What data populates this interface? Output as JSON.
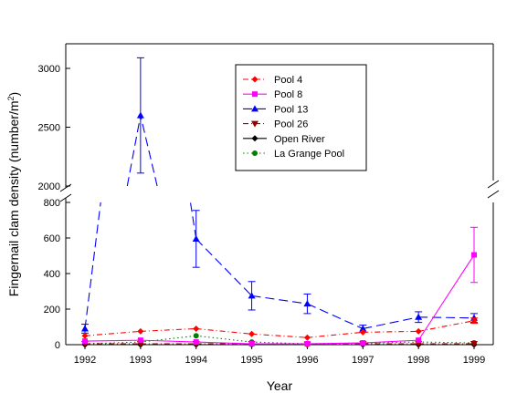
{
  "chart_data": {
    "type": "line",
    "xlabel": "Year",
    "ylabel_prefix": "Fingernail clam density (number/m",
    "ylabel_sup": "2",
    "ylabel_suffix": ")",
    "x": [
      1992,
      1993,
      1994,
      1995,
      1996,
      1997,
      1998,
      1999
    ],
    "x_tick_labels": [
      "1992",
      "1993",
      "1994",
      "1995",
      "1996",
      "1997",
      "1998",
      "1999"
    ],
    "xlim": [
      1992,
      1999
    ],
    "y_axis_break": true,
    "ylim_lower": [
      0,
      800
    ],
    "ylim_upper": [
      2000,
      3200
    ],
    "y_ticks_lower": [
      0,
      200,
      400,
      600,
      800
    ],
    "y_tick_labels_lower": [
      "0",
      "200",
      "400",
      "600",
      "800"
    ],
    "y_ticks_upper": [
      2000,
      2500,
      3000
    ],
    "y_tick_labels_upper": [
      "2000",
      "2500",
      "3000"
    ],
    "grid": false,
    "legend_position": "top-center",
    "series": [
      {
        "name": "Pool 4",
        "color": "#ff0000",
        "marker": "diamond",
        "dash": "dash-dot",
        "values": [
          50,
          75,
          90,
          60,
          40,
          70,
          75,
          135
        ],
        "errors": [
          0,
          0,
          0,
          0,
          0,
          0,
          0,
          15
        ]
      },
      {
        "name": "Pool 8",
        "color": "#ff00ff",
        "marker": "square",
        "dash": "solid",
        "values": [
          20,
          25,
          15,
          5,
          5,
          10,
          25,
          505
        ],
        "errors": [
          0,
          0,
          0,
          0,
          0,
          0,
          0,
          155
        ]
      },
      {
        "name": "Pool 13",
        "color": "#0000ff",
        "marker": "triangle-up",
        "dash": "long-dash",
        "values": [
          90,
          2600,
          595,
          275,
          230,
          90,
          155,
          150
        ],
        "errors": [
          25,
          490,
          160,
          80,
          55,
          20,
          30,
          25
        ]
      },
      {
        "name": "Pool 26",
        "color": "#990000",
        "marker": "triangle-down",
        "dash": "dash-dot",
        "values": [
          5,
          5,
          5,
          5,
          2,
          5,
          5,
          5
        ],
        "errors": [
          0,
          0,
          0,
          0,
          0,
          0,
          0,
          0
        ]
      },
      {
        "name": "Open River",
        "color": "#000000",
        "marker": "diamond",
        "dash": "solid",
        "values": [
          0,
          0,
          0,
          0,
          0,
          0,
          0,
          0
        ],
        "errors": [
          0,
          0,
          0,
          0,
          0,
          0,
          0,
          0
        ]
      },
      {
        "name": "La Grange Pool",
        "color": "#008000",
        "marker": "circle",
        "dash": "dotted",
        "values": [
          5,
          15,
          50,
          15,
          5,
          10,
          15,
          10
        ],
        "errors": [
          0,
          0,
          0,
          0,
          0,
          0,
          0,
          0
        ]
      }
    ]
  }
}
